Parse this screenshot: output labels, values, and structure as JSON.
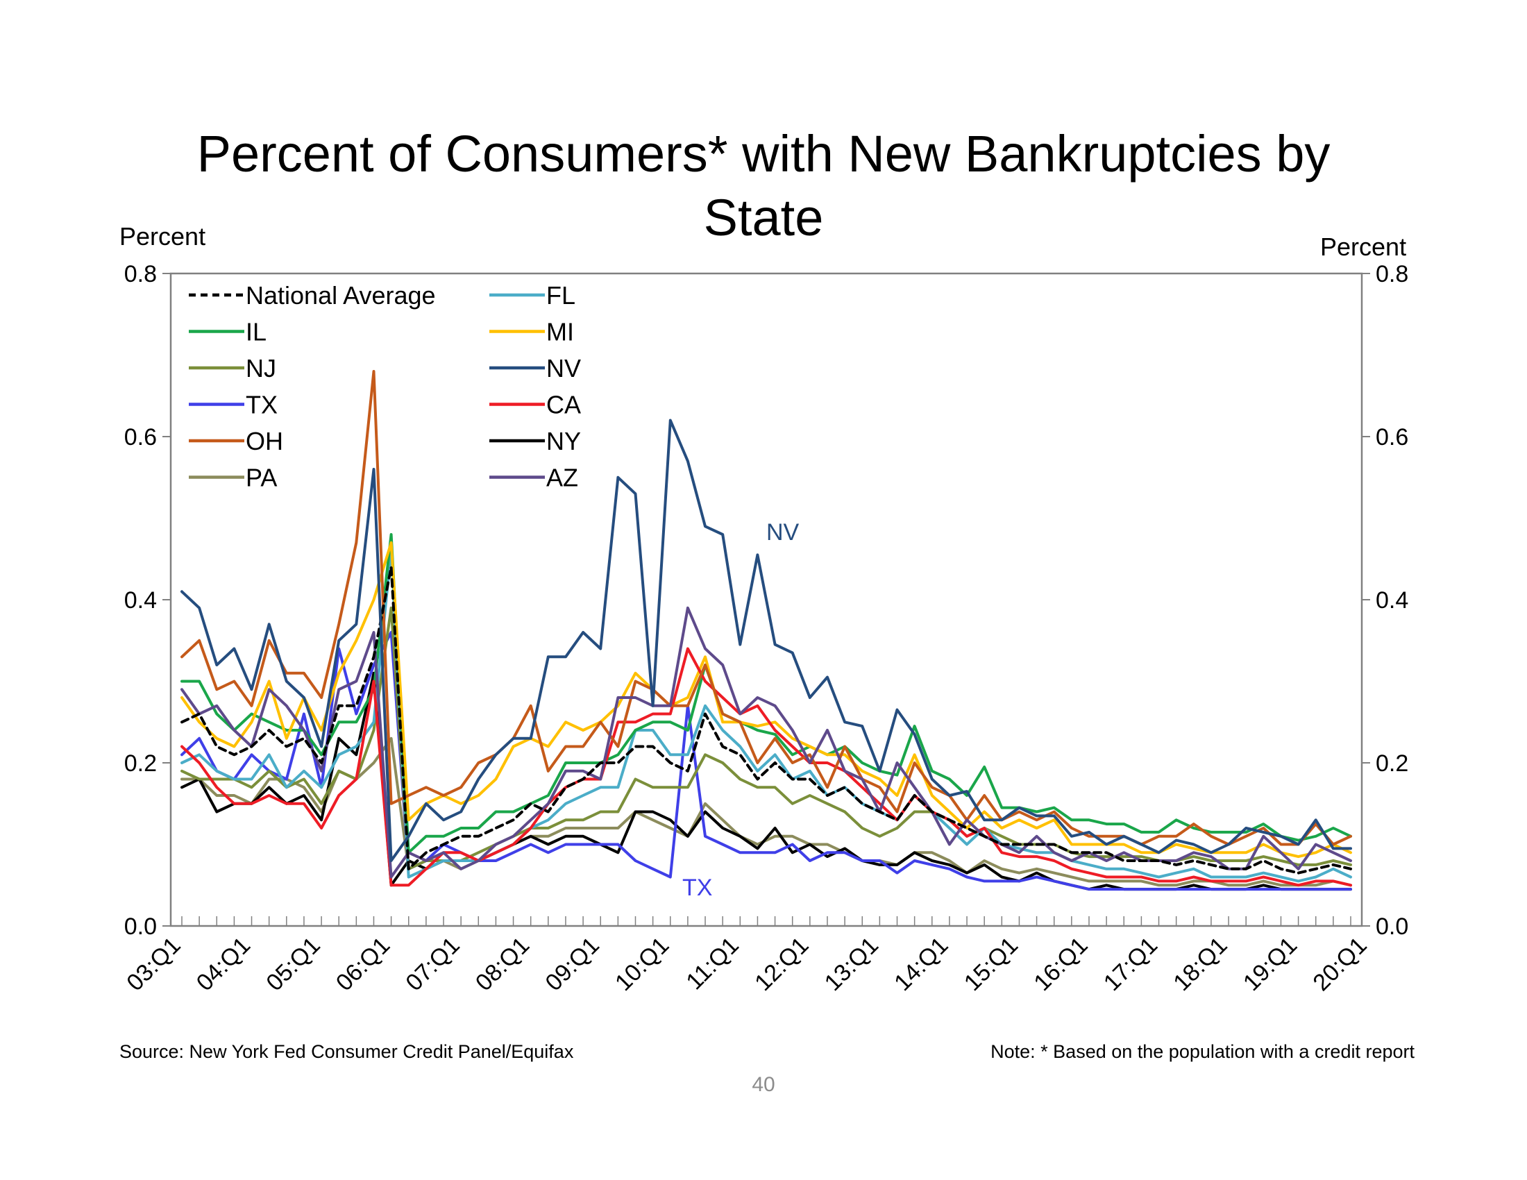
{
  "slide": {
    "title": "Percent of Consumers* with New Bankruptcies by State",
    "unit_left": "Percent",
    "unit_right": "Percent",
    "source": "Source: New York Fed Consumer Credit Panel/Equifax",
    "note": "Note: * Based on the population with a credit report",
    "page_number": "40"
  },
  "chart_data": {
    "type": "line",
    "ylim": [
      0,
      0.8
    ],
    "y_ticks": [
      "0.0",
      "0.2",
      "0.4",
      "0.6",
      "0.8"
    ],
    "x_tick_labels": [
      "03:Q1",
      "04:Q1",
      "05:Q1",
      "06:Q1",
      "07:Q1",
      "08:Q1",
      "09:Q1",
      "10:Q1",
      "11:Q1",
      "12:Q1",
      "13:Q1",
      "14:Q1",
      "15:Q1",
      "16:Q1",
      "17:Q1",
      "18:Q1",
      "19:Q1",
      "20:Q1"
    ],
    "x_start": "03:Q1",
    "x_end": "20:Q1",
    "grid": false,
    "legend_position": "top-left",
    "annotations": [
      {
        "text": "NV",
        "series": "NV",
        "color": "#254d7f"
      },
      {
        "text": "TX",
        "series": "TX",
        "color": "#3f3fe8"
      }
    ],
    "series": [
      {
        "name": "National Average",
        "color": "#000000",
        "dash": true,
        "values": [
          0.25,
          0.26,
          0.22,
          0.21,
          0.22,
          0.24,
          0.22,
          0.23,
          0.2,
          0.27,
          0.27,
          0.33,
          0.44,
          0.07,
          0.09,
          0.1,
          0.11,
          0.11,
          0.12,
          0.13,
          0.15,
          0.14,
          0.17,
          0.18,
          0.2,
          0.2,
          0.22,
          0.22,
          0.2,
          0.19,
          0.26,
          0.22,
          0.21,
          0.18,
          0.2,
          0.18,
          0.18,
          0.16,
          0.17,
          0.15,
          0.14,
          0.13,
          0.16,
          0.14,
          0.13,
          0.12,
          0.11,
          0.1,
          0.1,
          0.1,
          0.1,
          0.09,
          0.09,
          0.09,
          0.08,
          0.08,
          0.08,
          0.075,
          0.08,
          0.075,
          0.07,
          0.07,
          0.08,
          0.07,
          0.065,
          0.07,
          0.075,
          0.07
        ]
      },
      {
        "name": "IL",
        "color": "#1aa64a",
        "values": [
          0.3,
          0.3,
          0.26,
          0.24,
          0.26,
          0.25,
          0.24,
          0.24,
          0.21,
          0.25,
          0.25,
          0.29,
          0.48,
          0.09,
          0.11,
          0.11,
          0.12,
          0.12,
          0.14,
          0.14,
          0.15,
          0.16,
          0.2,
          0.2,
          0.2,
          0.21,
          0.24,
          0.25,
          0.25,
          0.24,
          0.32,
          0.26,
          0.25,
          0.24,
          0.235,
          0.21,
          0.22,
          0.21,
          0.22,
          0.2,
          0.19,
          0.185,
          0.245,
          0.19,
          0.18,
          0.16,
          0.195,
          0.145,
          0.145,
          0.14,
          0.145,
          0.13,
          0.13,
          0.125,
          0.125,
          0.115,
          0.115,
          0.13,
          0.12,
          0.115,
          0.115,
          0.115,
          0.125,
          0.11,
          0.105,
          0.11,
          0.12,
          0.11
        ]
      },
      {
        "name": "NJ",
        "color": "#7b8f3a",
        "values": [
          0.19,
          0.18,
          0.18,
          0.18,
          0.17,
          0.19,
          0.17,
          0.18,
          0.15,
          0.19,
          0.18,
          0.24,
          0.39,
          0.07,
          0.08,
          0.08,
          0.08,
          0.09,
          0.1,
          0.11,
          0.12,
          0.12,
          0.13,
          0.13,
          0.14,
          0.14,
          0.18,
          0.17,
          0.17,
          0.17,
          0.21,
          0.2,
          0.18,
          0.17,
          0.17,
          0.15,
          0.16,
          0.15,
          0.14,
          0.12,
          0.11,
          0.12,
          0.14,
          0.14,
          0.13,
          0.11,
          0.12,
          0.11,
          0.1,
          0.1,
          0.1,
          0.09,
          0.085,
          0.085,
          0.085,
          0.085,
          0.08,
          0.08,
          0.085,
          0.08,
          0.08,
          0.08,
          0.085,
          0.08,
          0.075,
          0.075,
          0.08,
          0.075
        ]
      },
      {
        "name": "TX",
        "color": "#3f3fe8",
        "values": [
          0.21,
          0.23,
          0.19,
          0.18,
          0.21,
          0.19,
          0.18,
          0.26,
          0.17,
          0.34,
          0.26,
          0.32,
          0.36,
          0.07,
          0.08,
          0.1,
          0.09,
          0.08,
          0.08,
          0.09,
          0.1,
          0.09,
          0.1,
          0.1,
          0.1,
          0.1,
          0.08,
          0.07,
          0.06,
          0.27,
          0.11,
          0.1,
          0.09,
          0.09,
          0.09,
          0.1,
          0.08,
          0.09,
          0.09,
          0.08,
          0.08,
          0.065,
          0.08,
          0.075,
          0.07,
          0.06,
          0.055,
          0.055,
          0.055,
          0.06,
          0.055,
          0.05,
          0.045,
          0.045,
          0.045,
          0.045,
          0.045,
          0.045,
          0.045,
          0.045,
          0.045,
          0.045,
          0.045,
          0.045,
          0.045,
          0.045,
          0.045,
          0.045
        ]
      },
      {
        "name": "OH",
        "color": "#c55a1a",
        "values": [
          0.33,
          0.35,
          0.29,
          0.3,
          0.27,
          0.35,
          0.31,
          0.31,
          0.28,
          0.37,
          0.47,
          0.68,
          0.15,
          0.16,
          0.17,
          0.16,
          0.17,
          0.2,
          0.21,
          0.23,
          0.27,
          0.19,
          0.22,
          0.22,
          0.25,
          0.22,
          0.3,
          0.29,
          0.27,
          0.27,
          0.32,
          0.26,
          0.25,
          0.2,
          0.23,
          0.2,
          0.21,
          0.17,
          0.22,
          0.18,
          0.17,
          0.14,
          0.2,
          0.17,
          0.16,
          0.13,
          0.16,
          0.13,
          0.14,
          0.13,
          0.14,
          0.12,
          0.11,
          0.11,
          0.11,
          0.1,
          0.11,
          0.11,
          0.125,
          0.11,
          0.1,
          0.11,
          0.12,
          0.1,
          0.1,
          0.125,
          0.1,
          0.11
        ]
      },
      {
        "name": "PA",
        "color": "#8c8c5c",
        "values": [
          0.18,
          0.18,
          0.16,
          0.16,
          0.15,
          0.18,
          0.18,
          0.17,
          0.14,
          0.19,
          0.18,
          0.2,
          0.23,
          0.07,
          0.08,
          0.08,
          0.07,
          0.08,
          0.09,
          0.1,
          0.11,
          0.11,
          0.12,
          0.12,
          0.12,
          0.12,
          0.14,
          0.13,
          0.12,
          0.11,
          0.15,
          0.13,
          0.11,
          0.1,
          0.11,
          0.11,
          0.1,
          0.1,
          0.09,
          0.08,
          0.08,
          0.075,
          0.09,
          0.09,
          0.08,
          0.065,
          0.08,
          0.07,
          0.065,
          0.07,
          0.065,
          0.06,
          0.055,
          0.055,
          0.055,
          0.055,
          0.05,
          0.05,
          0.055,
          0.055,
          0.05,
          0.05,
          0.055,
          0.05,
          0.05,
          0.05,
          0.055,
          0.05
        ]
      },
      {
        "name": "FL",
        "color": "#4badc8",
        "values": [
          0.2,
          0.21,
          0.19,
          0.18,
          0.18,
          0.21,
          0.17,
          0.19,
          0.17,
          0.21,
          0.22,
          0.25,
          0.46,
          0.06,
          0.07,
          0.08,
          0.08,
          0.08,
          0.09,
          0.1,
          0.12,
          0.13,
          0.15,
          0.16,
          0.17,
          0.17,
          0.24,
          0.24,
          0.21,
          0.21,
          0.27,
          0.24,
          0.22,
          0.19,
          0.21,
          0.18,
          0.19,
          0.16,
          0.17,
          0.15,
          0.14,
          0.13,
          0.16,
          0.14,
          0.12,
          0.1,
          0.12,
          0.1,
          0.095,
          0.09,
          0.09,
          0.08,
          0.075,
          0.07,
          0.07,
          0.065,
          0.06,
          0.065,
          0.07,
          0.06,
          0.06,
          0.06,
          0.065,
          0.06,
          0.055,
          0.06,
          0.07,
          0.06
        ]
      },
      {
        "name": "MI",
        "color": "#ffc000",
        "values": [
          0.28,
          0.25,
          0.23,
          0.22,
          0.25,
          0.3,
          0.23,
          0.28,
          0.24,
          0.31,
          0.35,
          0.4,
          0.47,
          0.13,
          0.15,
          0.16,
          0.15,
          0.16,
          0.18,
          0.22,
          0.23,
          0.22,
          0.25,
          0.24,
          0.25,
          0.27,
          0.31,
          0.29,
          0.27,
          0.28,
          0.33,
          0.25,
          0.25,
          0.245,
          0.25,
          0.23,
          0.22,
          0.21,
          0.21,
          0.19,
          0.18,
          0.16,
          0.21,
          0.16,
          0.14,
          0.12,
          0.14,
          0.12,
          0.13,
          0.12,
          0.13,
          0.1,
          0.1,
          0.1,
          0.1,
          0.09,
          0.09,
          0.1,
          0.095,
          0.09,
          0.09,
          0.09,
          0.1,
          0.09,
          0.085,
          0.09,
          0.1,
          0.09
        ]
      },
      {
        "name": "NV",
        "color": "#254d7f",
        "values": [
          0.41,
          0.39,
          0.32,
          0.34,
          0.29,
          0.37,
          0.3,
          0.28,
          0.22,
          0.35,
          0.37,
          0.56,
          0.08,
          0.11,
          0.15,
          0.13,
          0.14,
          0.18,
          0.21,
          0.23,
          0.23,
          0.33,
          0.33,
          0.36,
          0.34,
          0.55,
          0.53,
          0.27,
          0.62,
          0.57,
          0.49,
          0.48,
          0.345,
          0.455,
          0.345,
          0.335,
          0.28,
          0.305,
          0.25,
          0.245,
          0.19,
          0.265,
          0.235,
          0.18,
          0.16,
          0.165,
          0.13,
          0.13,
          0.145,
          0.135,
          0.135,
          0.11,
          0.115,
          0.1,
          0.11,
          0.1,
          0.09,
          0.105,
          0.1,
          0.09,
          0.1,
          0.12,
          0.115,
          0.11,
          0.1,
          0.13,
          0.095,
          0.095
        ]
      },
      {
        "name": "CA",
        "color": "#ee1c25",
        "values": [
          0.22,
          0.2,
          0.17,
          0.15,
          0.15,
          0.16,
          0.15,
          0.15,
          0.12,
          0.16,
          0.18,
          0.3,
          0.05,
          0.05,
          0.07,
          0.09,
          0.09,
          0.08,
          0.09,
          0.1,
          0.12,
          0.15,
          0.17,
          0.18,
          0.18,
          0.25,
          0.25,
          0.26,
          0.26,
          0.34,
          0.3,
          0.28,
          0.26,
          0.27,
          0.24,
          0.22,
          0.2,
          0.2,
          0.19,
          0.17,
          0.15,
          0.13,
          0.16,
          0.14,
          0.13,
          0.11,
          0.12,
          0.09,
          0.085,
          0.085,
          0.08,
          0.07,
          0.065,
          0.06,
          0.06,
          0.06,
          0.055,
          0.055,
          0.06,
          0.055,
          0.055,
          0.055,
          0.06,
          0.055,
          0.05,
          0.055,
          0.055,
          0.05
        ]
      },
      {
        "name": "NY",
        "color": "#000000",
        "values": [
          0.17,
          0.18,
          0.14,
          0.15,
          0.15,
          0.17,
          0.15,
          0.16,
          0.13,
          0.23,
          0.21,
          0.31,
          0.05,
          0.08,
          0.07,
          0.08,
          0.08,
          0.08,
          0.09,
          0.1,
          0.11,
          0.1,
          0.11,
          0.11,
          0.1,
          0.09,
          0.14,
          0.14,
          0.13,
          0.11,
          0.14,
          0.12,
          0.11,
          0.095,
          0.12,
          0.09,
          0.1,
          0.085,
          0.095,
          0.08,
          0.075,
          0.075,
          0.09,
          0.08,
          0.075,
          0.065,
          0.075,
          0.06,
          0.055,
          0.065,
          0.055,
          0.05,
          0.045,
          0.05,
          0.045,
          0.045,
          0.045,
          0.045,
          0.05,
          0.045,
          0.045,
          0.045,
          0.05,
          0.045,
          0.045,
          0.045,
          0.045,
          0.045
        ]
      },
      {
        "name": "AZ",
        "color": "#5e4a8b",
        "values": [
          0.29,
          0.26,
          0.27,
          0.24,
          0.22,
          0.29,
          0.27,
          0.24,
          0.19,
          0.29,
          0.3,
          0.36,
          0.06,
          0.09,
          0.08,
          0.09,
          0.07,
          0.08,
          0.1,
          0.11,
          0.13,
          0.15,
          0.19,
          0.19,
          0.18,
          0.28,
          0.28,
          0.27,
          0.27,
          0.39,
          0.34,
          0.32,
          0.26,
          0.28,
          0.27,
          0.24,
          0.2,
          0.24,
          0.19,
          0.18,
          0.14,
          0.2,
          0.17,
          0.14,
          0.1,
          0.13,
          0.11,
          0.1,
          0.09,
          0.11,
          0.09,
          0.08,
          0.09,
          0.08,
          0.09,
          0.08,
          0.08,
          0.08,
          0.09,
          0.085,
          0.07,
          0.07,
          0.11,
          0.09,
          0.07,
          0.1,
          0.09,
          0.08
        ]
      }
    ]
  }
}
